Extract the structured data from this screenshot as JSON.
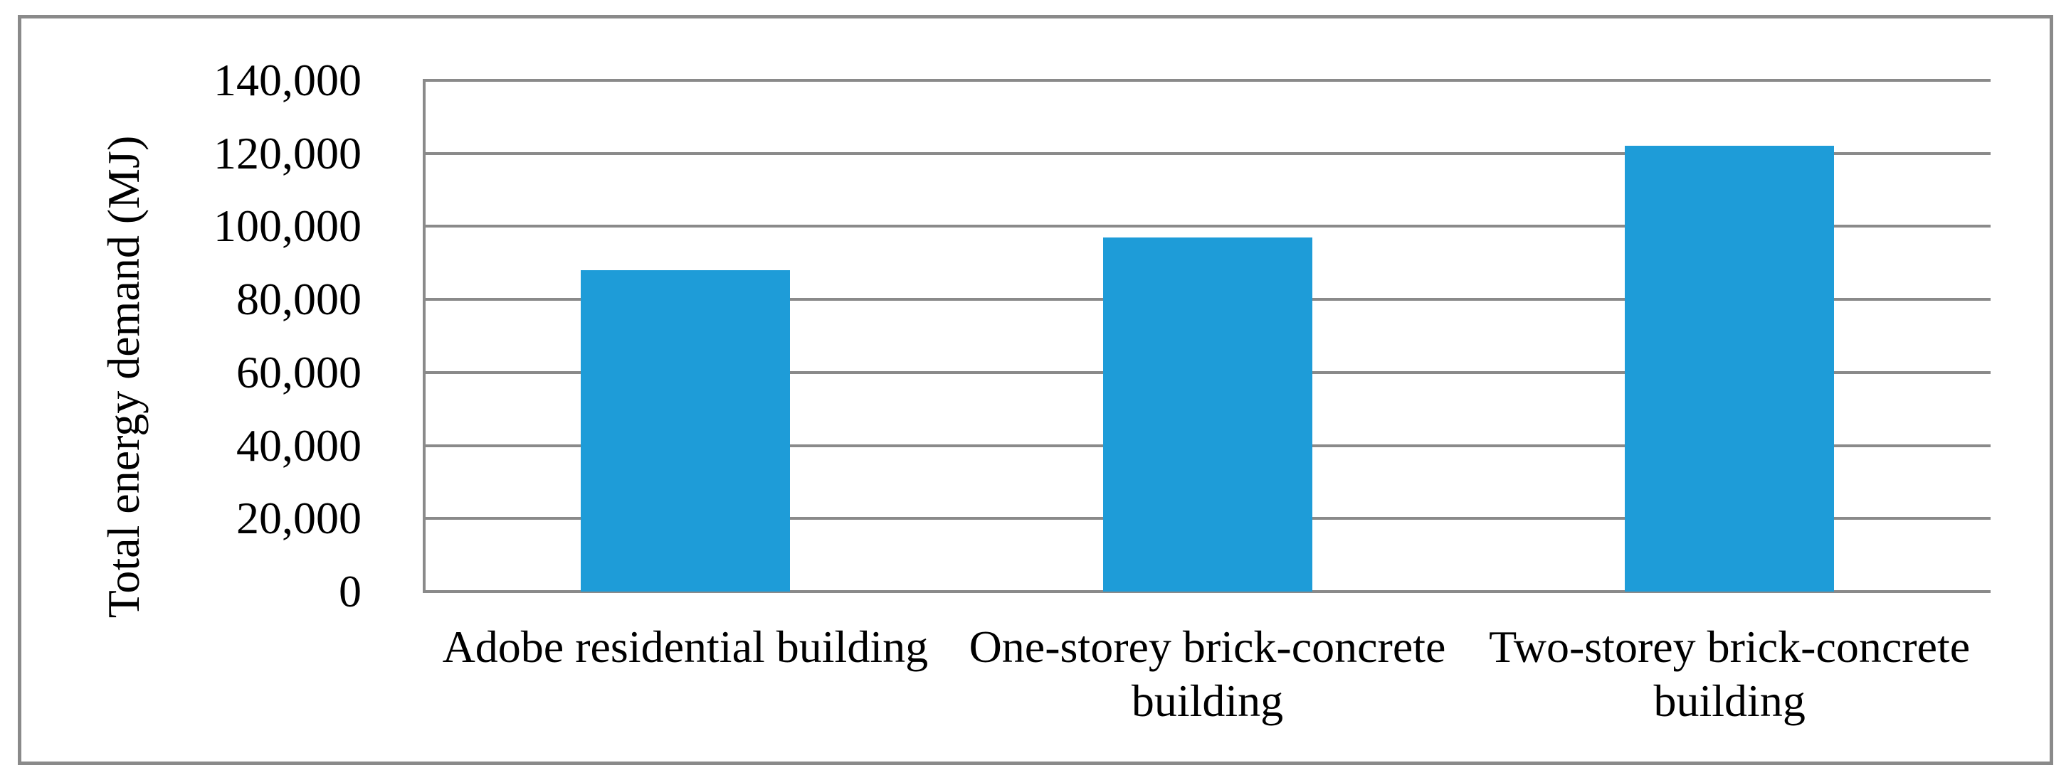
{
  "figure": {
    "background_color": "#FFFFFF",
    "border_color": "#8A8A8A",
    "gridline_color": "#8A8A8A",
    "axis_line_color": "#8A8A8A",
    "text_color": "#000000"
  },
  "chart_data": {
    "type": "bar",
    "title": "",
    "xlabel": "",
    "ylabel": "Total energy demand (MJ)",
    "categories": [
      "Adobe residential building",
      "One-storey brick-concrete building",
      "Two-storey brick-concrete building"
    ],
    "values": [
      88000,
      97000,
      122000
    ],
    "bar_color": "#1E9CD8",
    "ylim": [
      0,
      140000
    ],
    "ytick_interval": 20000,
    "ytick_labels_top_to_bottom": [
      "140,000",
      "120,000",
      "100,000",
      "80,000",
      "60,000",
      "40,000",
      "20,000",
      "0"
    ],
    "grid": true,
    "legend_visible": false
  }
}
